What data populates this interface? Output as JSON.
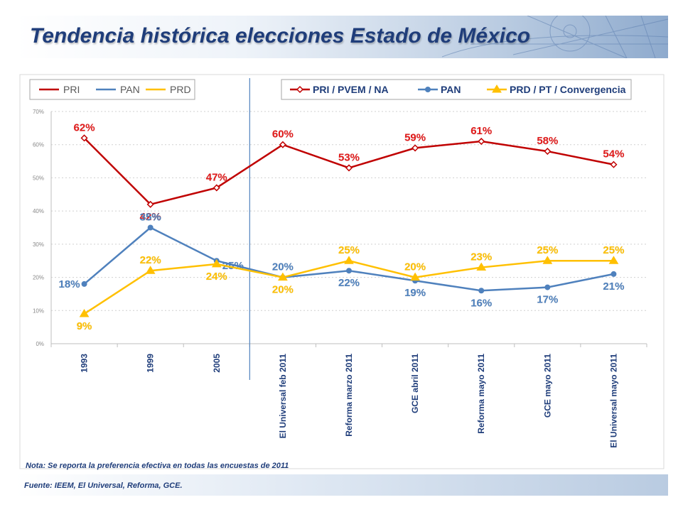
{
  "header": {
    "title": "Tendencia histórica elecciones Estado de México"
  },
  "legend_left": {
    "items": [
      {
        "label": "PRI",
        "color": "#c00000"
      },
      {
        "label": "PAN",
        "color": "#4f81bd"
      },
      {
        "label": "PRD",
        "color": "#ffc000"
      }
    ]
  },
  "legend_right": {
    "items": [
      {
        "label": "PRI / PVEM / NA",
        "color": "#c00000",
        "marker": "diamond"
      },
      {
        "label": "PAN",
        "color": "#4f81bd",
        "marker": "circle"
      },
      {
        "label": "PRD / PT / Convergencia",
        "color": "#ffc000",
        "marker": "triangle"
      }
    ]
  },
  "chart_data": {
    "type": "line",
    "categories": [
      "1993",
      "1999",
      "2005",
      "El Universal feb 2011",
      "Reforma marzo 2011",
      "GCE abril 2011",
      "Reforma mayo 2011",
      "GCE mayo 2011",
      "El Universal mayo 2011"
    ],
    "y_ticks": [
      "0%",
      "10%",
      "20%",
      "30%",
      "40%",
      "50%",
      "60%",
      "70%"
    ],
    "ylim": [
      0,
      70
    ],
    "grid": true,
    "divider_after_category": 2,
    "series": [
      {
        "name": "PRI / PVEM / NA",
        "color": "#c00000",
        "label_color": "#e31b1b",
        "marker": "diamond",
        "values": [
          62,
          42,
          47,
          60,
          53,
          59,
          61,
          58,
          54
        ],
        "labels": [
          "62%",
          "42%",
          "47%",
          "60%",
          "53%",
          "59%",
          "61%",
          "58%",
          "54%"
        ],
        "label_pos": [
          "above",
          "below",
          "above",
          "above",
          "above",
          "above",
          "above",
          "above",
          "above"
        ]
      },
      {
        "name": "PAN",
        "color": "#4f81bd",
        "label_color": "#4f81bd",
        "marker": "circle",
        "values": [
          18,
          35,
          25,
          20,
          22,
          19,
          16,
          17,
          21
        ],
        "labels": [
          "18%",
          "35%",
          "25%",
          "20%",
          "22%",
          "19%",
          "16%",
          "17%",
          "21%"
        ],
        "label_pos": [
          "left",
          "above",
          "right",
          "above",
          "below",
          "below",
          "below",
          "below",
          "below"
        ]
      },
      {
        "name": "PRD / PT / Convergencia",
        "color": "#ffc000",
        "label_color": "#ffc000",
        "marker": "triangle",
        "values": [
          9,
          22,
          24,
          20,
          25,
          20,
          23,
          25,
          25
        ],
        "labels": [
          "9%",
          "22%",
          "24%",
          "20%",
          "25%",
          "20%",
          "23%",
          "25%",
          "25%"
        ],
        "label_pos": [
          "below",
          "above",
          "below",
          "below",
          "above",
          "above",
          "above",
          "above",
          "above"
        ]
      }
    ]
  },
  "footer": {
    "note": "Nota: Se reporta la preferencia efectiva en todas las encuestas de 2011",
    "source": "Fuente: IEEM, El Universal, Reforma, GCE."
  }
}
